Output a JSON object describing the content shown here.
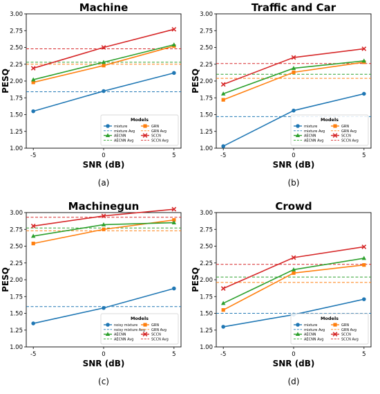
{
  "chart_data": [
    {
      "type": "line",
      "title": "Machine",
      "caption": "(a)",
      "xlabel": "SNR (dB)",
      "ylabel": "PESQ",
      "x": [
        -5,
        0,
        5
      ],
      "x_ticks": [
        "-5",
        "0",
        "5"
      ],
      "ylim": [
        1.0,
        3.0
      ],
      "y_ticks": [
        "1.00",
        "1.25",
        "1.50",
        "1.75",
        "2.00",
        "2.25",
        "2.50",
        "2.75",
        "3.00"
      ],
      "legend_title": "Models",
      "legend_position": "lower-right",
      "series": [
        {
          "name": "mixture",
          "avg_name": "mixture Avg",
          "color": "#1f77b4",
          "marker": "circle",
          "values": [
            1.55,
            1.85,
            2.12
          ],
          "avg": 1.84
        },
        {
          "name": "GRN",
          "avg_name": "GRN Avg",
          "color": "#ff7f0e",
          "marker": "square",
          "values": [
            1.98,
            2.23,
            2.52
          ],
          "avg": 2.25
        },
        {
          "name": "AECNN",
          "avg_name": "AECNN Avg",
          "color": "#2ca02c",
          "marker": "triangle",
          "values": [
            2.02,
            2.28,
            2.54
          ],
          "avg": 2.28
        },
        {
          "name": "SCCN",
          "avg_name": "SCCN Avg",
          "color": "#d62728",
          "marker": "x",
          "values": [
            2.19,
            2.5,
            2.77
          ],
          "avg": 2.48
        }
      ]
    },
    {
      "type": "line",
      "title": "Traffic and Car",
      "caption": "(b)",
      "xlabel": "SNR (dB)",
      "ylabel": "PESQ",
      "x": [
        -5,
        0,
        5
      ],
      "x_ticks": [
        "-5",
        "0",
        "5"
      ],
      "ylim": [
        1.0,
        3.0
      ],
      "y_ticks": [
        "1.00",
        "1.25",
        "1.50",
        "1.75",
        "2.00",
        "2.25",
        "2.50",
        "2.75",
        "3.00"
      ],
      "legend_title": "Models",
      "legend_position": "lower-right",
      "series": [
        {
          "name": "mixture",
          "avg_name": "mixture Avg",
          "color": "#1f77b4",
          "marker": "circle",
          "values": [
            1.03,
            1.56,
            1.81
          ],
          "avg": 1.47
        },
        {
          "name": "GRN",
          "avg_name": "GRN Avg",
          "color": "#ff7f0e",
          "marker": "square",
          "values": [
            1.72,
            2.13,
            2.28
          ],
          "avg": 2.04
        },
        {
          "name": "AECNN",
          "avg_name": "AECNN Avg",
          "color": "#2ca02c",
          "marker": "triangle",
          "values": [
            1.81,
            2.19,
            2.3
          ],
          "avg": 2.1
        },
        {
          "name": "SCCN",
          "avg_name": "SCCN Avg",
          "color": "#d62728",
          "marker": "x",
          "values": [
            1.95,
            2.35,
            2.48
          ],
          "avg": 2.26
        }
      ]
    },
    {
      "type": "line",
      "title": "Machinegun",
      "caption": "(c)",
      "xlabel": "SNR (dB)",
      "ylabel": "PESQ",
      "x": [
        -5,
        0,
        5
      ],
      "x_ticks": [
        "-5",
        "0",
        "5"
      ],
      "ylim": [
        1.0,
        3.0
      ],
      "y_ticks": [
        "1.00",
        "1.25",
        "1.50",
        "1.75",
        "2.00",
        "2.25",
        "2.50",
        "2.75",
        "3.00"
      ],
      "legend_title": "Models",
      "legend_position": "lower-right",
      "series": [
        {
          "name": "noisy mixture",
          "avg_name": "noisy mixture Avg",
          "color": "#1f77b4",
          "marker": "circle",
          "values": [
            1.35,
            1.58,
            1.87
          ],
          "avg": 1.6
        },
        {
          "name": "GRN",
          "avg_name": "GRN Avg",
          "color": "#ff7f0e",
          "marker": "square",
          "values": [
            2.54,
            2.75,
            2.89
          ],
          "avg": 2.73
        },
        {
          "name": "AECNN",
          "avg_name": "AECNN Avg",
          "color": "#2ca02c",
          "marker": "triangle",
          "values": [
            2.65,
            2.82,
            2.85
          ],
          "avg": 2.77
        },
        {
          "name": "SCCN",
          "avg_name": "SCCN Avg",
          "color": "#d62728",
          "marker": "x",
          "values": [
            2.8,
            2.95,
            3.05
          ],
          "avg": 2.93
        }
      ]
    },
    {
      "type": "line",
      "title": "Crowd",
      "caption": "(d)",
      "xlabel": "SNR (dB)",
      "ylabel": "PESQ",
      "x": [
        -5,
        0,
        5
      ],
      "x_ticks": [
        "-5",
        "0",
        "5"
      ],
      "ylim": [
        1.0,
        3.0
      ],
      "y_ticks": [
        "1.00",
        "1.25",
        "1.50",
        "1.75",
        "2.00",
        "2.25",
        "2.50",
        "2.75",
        "3.00"
      ],
      "legend_title": "Models",
      "legend_position": "lower-right",
      "series": [
        {
          "name": "mixture",
          "avg_name": "mixture Avg",
          "color": "#1f77b4",
          "marker": "circle",
          "values": [
            1.3,
            1.48,
            1.71
          ],
          "avg": 1.5
        },
        {
          "name": "GRN",
          "avg_name": "GRN Avg",
          "color": "#ff7f0e",
          "marker": "square",
          "values": [
            1.55,
            2.1,
            2.22
          ],
          "avg": 1.96
        },
        {
          "name": "AECNN",
          "avg_name": "AECNN Avg",
          "color": "#2ca02c",
          "marker": "triangle",
          "values": [
            1.65,
            2.15,
            2.32
          ],
          "avg": 2.04
        },
        {
          "name": "SCCN",
          "avg_name": "SCCN Avg",
          "color": "#d62728",
          "marker": "x",
          "values": [
            1.87,
            2.33,
            2.49
          ],
          "avg": 2.23
        }
      ]
    }
  ]
}
